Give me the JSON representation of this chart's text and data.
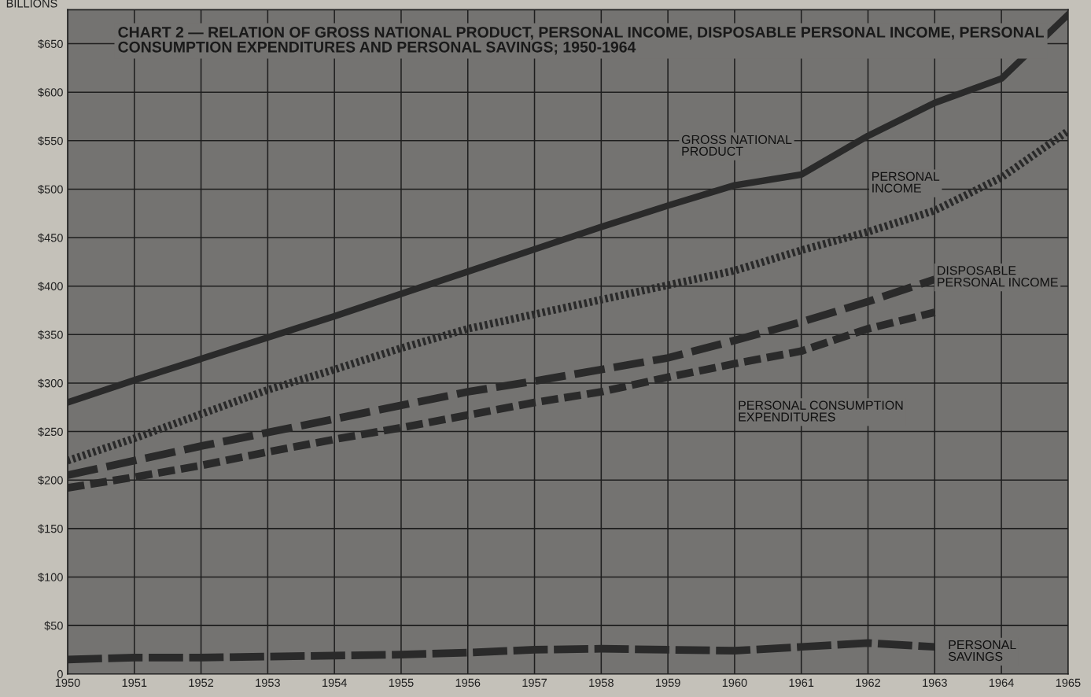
{
  "chart_data": {
    "type": "line",
    "title": "CHART 2 — RELATION OF GROSS NATIONAL PRODUCT, PERSONAL INCOME, DISPOSABLE PERSONAL INCOME, PERSONAL\nCONSUMPTION EXPENDITURES AND PERSONAL SAVINGS; 1950-1964",
    "ylabel": "BILLIONS",
    "x": [
      1950,
      1951,
      1952,
      1953,
      1954,
      1955,
      1956,
      1957,
      1958,
      1959,
      1960,
      1961,
      1962,
      1963,
      1964,
      1965
    ],
    "series": [
      {
        "name": "GROSS NATIONAL\nPRODUCT",
        "color": "#2a2a2a",
        "line_style": "solid",
        "values": [
          280,
          303,
          325,
          347,
          369,
          392,
          415,
          438,
          461,
          483,
          504,
          515,
          555,
          589,
          614,
          680
        ]
      },
      {
        "name": "PERSONAL\nINCOME",
        "color": "#2a2a2a",
        "line_style": "dotted",
        "values": [
          220,
          243,
          268,
          293,
          314,
          336,
          356,
          371,
          386,
          401,
          416,
          437,
          456,
          478,
          512,
          560
        ]
      },
      {
        "name": "DISPOSABLE\nPERSONAL INCOME",
        "color": "#2a2a2a",
        "line_style": "dashed",
        "values": [
          205,
          220,
          235,
          249,
          263,
          277,
          291,
          302,
          314,
          326,
          344,
          363,
          384,
          407,
          null,
          null
        ]
      },
      {
        "name": "PERSONAL CONSUMPTION\nEXPENDITURES",
        "color": "#2a2a2a",
        "line_style": "dashed",
        "values": [
          192,
          203,
          215,
          229,
          242,
          254,
          267,
          280,
          291,
          306,
          320,
          333,
          356,
          373,
          null,
          null
        ]
      },
      {
        "name": "PERSONAL\nSAVINGS",
        "color": "#2a2a2a",
        "line_style": "dashed",
        "values": [
          15,
          17,
          17,
          18,
          19,
          20,
          22,
          25,
          26,
          25,
          24,
          28,
          32,
          28,
          null,
          null
        ]
      }
    ],
    "xlim": [
      1950,
      1965
    ],
    "xticks": [
      1950,
      1951,
      1952,
      1953,
      1954,
      1955,
      1956,
      1957,
      1958,
      1959,
      1960,
      1961,
      1962,
      1963,
      1964,
      1965
    ],
    "ylim": [
      0,
      685
    ],
    "yticks": [
      0,
      {
        "value": 50,
        "label": "$50"
      },
      {
        "value": 100,
        "label": "$100"
      },
      {
        "value": 150,
        "label": "$150"
      },
      {
        "value": 200,
        "label": "$200"
      },
      {
        "value": 250,
        "label": "$250"
      },
      {
        "value": 300,
        "label": "$300"
      },
      {
        "value": 350,
        "label": "$350"
      },
      {
        "value": 400,
        "label": "$400"
      },
      {
        "value": 450,
        "label": "$450"
      },
      {
        "value": 500,
        "label": "$500"
      },
      {
        "value": 550,
        "label": "$550"
      },
      {
        "value": 600,
        "label": "$600"
      },
      {
        "value": 650,
        "label": "$650"
      }
    ],
    "grid": true,
    "legend": false,
    "marker": "none"
  }
}
